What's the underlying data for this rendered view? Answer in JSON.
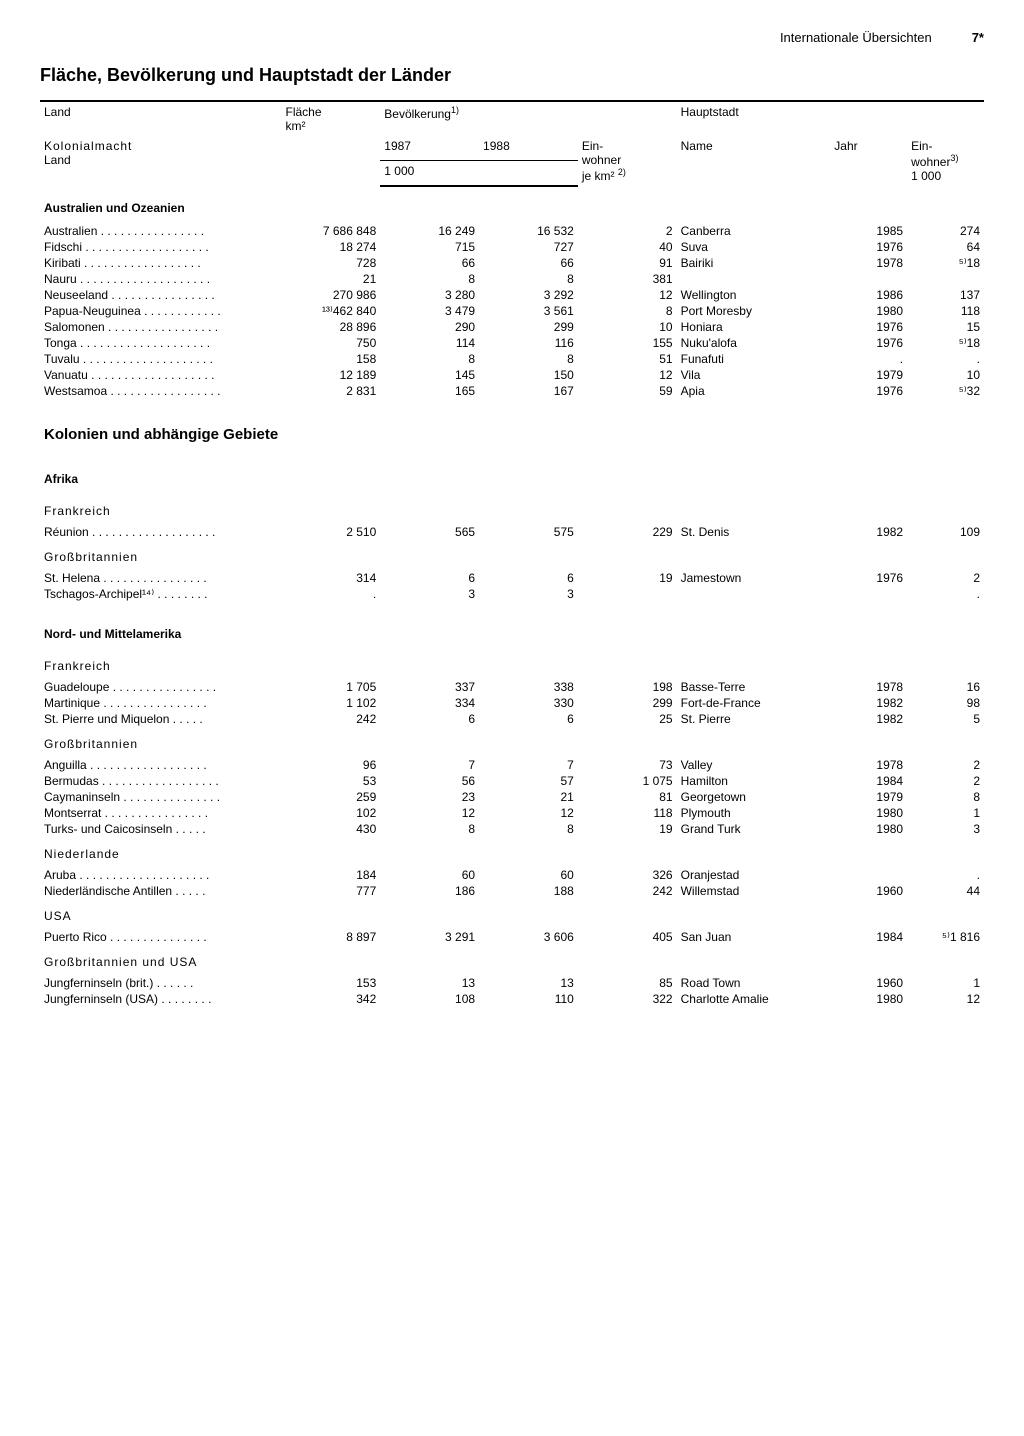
{
  "header": {
    "section": "Internationale Übersichten",
    "page": "7*"
  },
  "title": "Fläche, Bevölkerung und Hauptstadt der Länder",
  "columns": {
    "land": "Land",
    "kolonialmacht": "Kolonialmacht",
    "land2": "Land",
    "flaeche": "Fläche",
    "flaeche_unit": "km²",
    "bev": "Bevölkerung",
    "bev_sup": "1)",
    "y1987": "1987",
    "y1988": "1988",
    "unit_1000": "1 000",
    "einwohner": "Ein-",
    "einwohner2": "wohner",
    "jekm": "je km²",
    "jekm_sup": "2)",
    "hauptstadt": "Hauptstadt",
    "name": "Name",
    "jahr": "Jahr",
    "einw3": "Ein-",
    "einw3b": "wohner",
    "einw3_sup": "3)",
    "einw3_unit": "1 000"
  },
  "sections": [
    {
      "title": "Australien und Ozeanien",
      "rows": [
        {
          "land": "Australien",
          "area": "7 686 848",
          "p87": "16 249",
          "p88": "16 532",
          "dens": "2",
          "cap": "Canberra",
          "yr": "1985",
          "capp": "274"
        },
        {
          "land": "Fidschi",
          "area": "18 274",
          "p87": "715",
          "p88": "727",
          "dens": "40",
          "cap": "Suva",
          "yr": "1976",
          "capp": "64"
        },
        {
          "land": "Kiribati",
          "area": "728",
          "p87": "66",
          "p88": "66",
          "dens": "91",
          "cap": "Bairiki",
          "yr": "1978",
          "capp": "⁵⁾18"
        },
        {
          "land": "Nauru",
          "area": "21",
          "p87": "8",
          "p88": "8",
          "dens": "381",
          "cap": "",
          "yr": "",
          "capp": ""
        },
        {
          "land": "Neuseeland",
          "area": "270 986",
          "p87": "3 280",
          "p88": "3 292",
          "dens": "12",
          "cap": "Wellington",
          "yr": "1986",
          "capp": "137"
        },
        {
          "land": "Papua-Neuguinea",
          "area": "¹³⁾462 840",
          "p87": "3 479",
          "p88": "3 561",
          "dens": "8",
          "cap": "Port Moresby",
          "yr": "1980",
          "capp": "118"
        },
        {
          "land": "Salomonen",
          "area": "28 896",
          "p87": "290",
          "p88": "299",
          "dens": "10",
          "cap": "Honiara",
          "yr": "1976",
          "capp": "15"
        },
        {
          "land": "Tonga",
          "area": "750",
          "p87": "114",
          "p88": "116",
          "dens": "155",
          "cap": "Nuku'alofa",
          "yr": "1976",
          "capp": "⁵⁾18"
        },
        {
          "land": "Tuvalu",
          "area": "158",
          "p87": "8",
          "p88": "8",
          "dens": "51",
          "cap": "Funafuti",
          "yr": ".",
          "capp": "."
        },
        {
          "land": "Vanuatu",
          "area": "12 189",
          "p87": "145",
          "p88": "150",
          "dens": "12",
          "cap": "Vila",
          "yr": "1979",
          "capp": "10"
        },
        {
          "land": "Westsamoa",
          "area": "2 831",
          "p87": "165",
          "p88": "167",
          "dens": "59",
          "cap": "Apia",
          "yr": "1976",
          "capp": "⁵⁾32"
        }
      ]
    }
  ],
  "h2": "Kolonien und abhängige Gebiete",
  "colgroups": [
    {
      "region": "Afrika",
      "powers": [
        {
          "power": "Frankreich",
          "rows": [
            {
              "land": "Réunion",
              "area": "2 510",
              "p87": "565",
              "p88": "575",
              "dens": "229",
              "cap": "St. Denis",
              "yr": "1982",
              "capp": "109"
            }
          ]
        },
        {
          "power": "Großbritannien",
          "rows": [
            {
              "land": "St. Helena",
              "area": "314",
              "p87": "6",
              "p88": "6",
              "dens": "19",
              "cap": "Jamestown",
              "yr": "1976",
              "capp": "2"
            },
            {
              "land": "Tschagos-Archipel¹⁴⁾",
              "area": ".",
              "p87": "3",
              "p88": "3",
              "dens": "",
              "cap": "",
              "yr": "",
              "capp": "."
            }
          ]
        }
      ]
    },
    {
      "region": "Nord- und Mittelamerika",
      "powers": [
        {
          "power": "Frankreich",
          "rows": [
            {
              "land": "Guadeloupe",
              "area": "1 705",
              "p87": "337",
              "p88": "338",
              "dens": "198",
              "cap": "Basse-Terre",
              "yr": "1978",
              "capp": "16"
            },
            {
              "land": "Martinique",
              "area": "1 102",
              "p87": "334",
              "p88": "330",
              "dens": "299",
              "cap": "Fort-de-France",
              "yr": "1982",
              "capp": "98"
            },
            {
              "land": "St. Pierre und Miquelon",
              "area": "242",
              "p87": "6",
              "p88": "6",
              "dens": "25",
              "cap": "St. Pierre",
              "yr": "1982",
              "capp": "5"
            }
          ]
        },
        {
          "power": "Großbritannien",
          "rows": [
            {
              "land": "Anguilla",
              "area": "96",
              "p87": "7",
              "p88": "7",
              "dens": "73",
              "cap": "Valley",
              "yr": "1978",
              "capp": "2"
            },
            {
              "land": "Bermudas",
              "area": "53",
              "p87": "56",
              "p88": "57",
              "dens": "1 075",
              "cap": "Hamilton",
              "yr": "1984",
              "capp": "2"
            },
            {
              "land": "Caymaninseln",
              "area": "259",
              "p87": "23",
              "p88": "21",
              "dens": "81",
              "cap": "Georgetown",
              "yr": "1979",
              "capp": "8"
            },
            {
              "land": "Montserrat",
              "area": "102",
              "p87": "12",
              "p88": "12",
              "dens": "118",
              "cap": "Plymouth",
              "yr": "1980",
              "capp": "1"
            },
            {
              "land": "Turks- und Caicosinseln",
              "area": "430",
              "p87": "8",
              "p88": "8",
              "dens": "19",
              "cap": "Grand Turk",
              "yr": "1980",
              "capp": "3"
            }
          ]
        },
        {
          "power": "Niederlande",
          "rows": [
            {
              "land": "Aruba",
              "area": "184",
              "p87": "60",
              "p88": "60",
              "dens": "326",
              "cap": "Oranjestad",
              "yr": "",
              "capp": "."
            },
            {
              "land": "Niederländische Antillen",
              "area": "777",
              "p87": "186",
              "p88": "188",
              "dens": "242",
              "cap": "Willemstad",
              "yr": "1960",
              "capp": "44"
            }
          ]
        },
        {
          "power": "USA",
          "rows": [
            {
              "land": "Puerto Rico",
              "area": "8 897",
              "p87": "3 291",
              "p88": "3 606",
              "dens": "405",
              "cap": "San Juan",
              "yr": "1984",
              "capp": "⁵⁾1 816"
            }
          ]
        },
        {
          "power": "Großbritannien und USA",
          "rows": [
            {
              "land": "Jungferninseln (brit.)",
              "area": "153",
              "p87": "13",
              "p88": "13",
              "dens": "85",
              "cap": "Road Town",
              "yr": "1960",
              "capp": "1"
            },
            {
              "land": "Jungferninseln (USA)",
              "area": "342",
              "p87": "108",
              "p88": "110",
              "dens": "322",
              "cap": "Charlotte Amalie",
              "yr": "1980",
              "capp": "12"
            }
          ]
        }
      ]
    }
  ]
}
